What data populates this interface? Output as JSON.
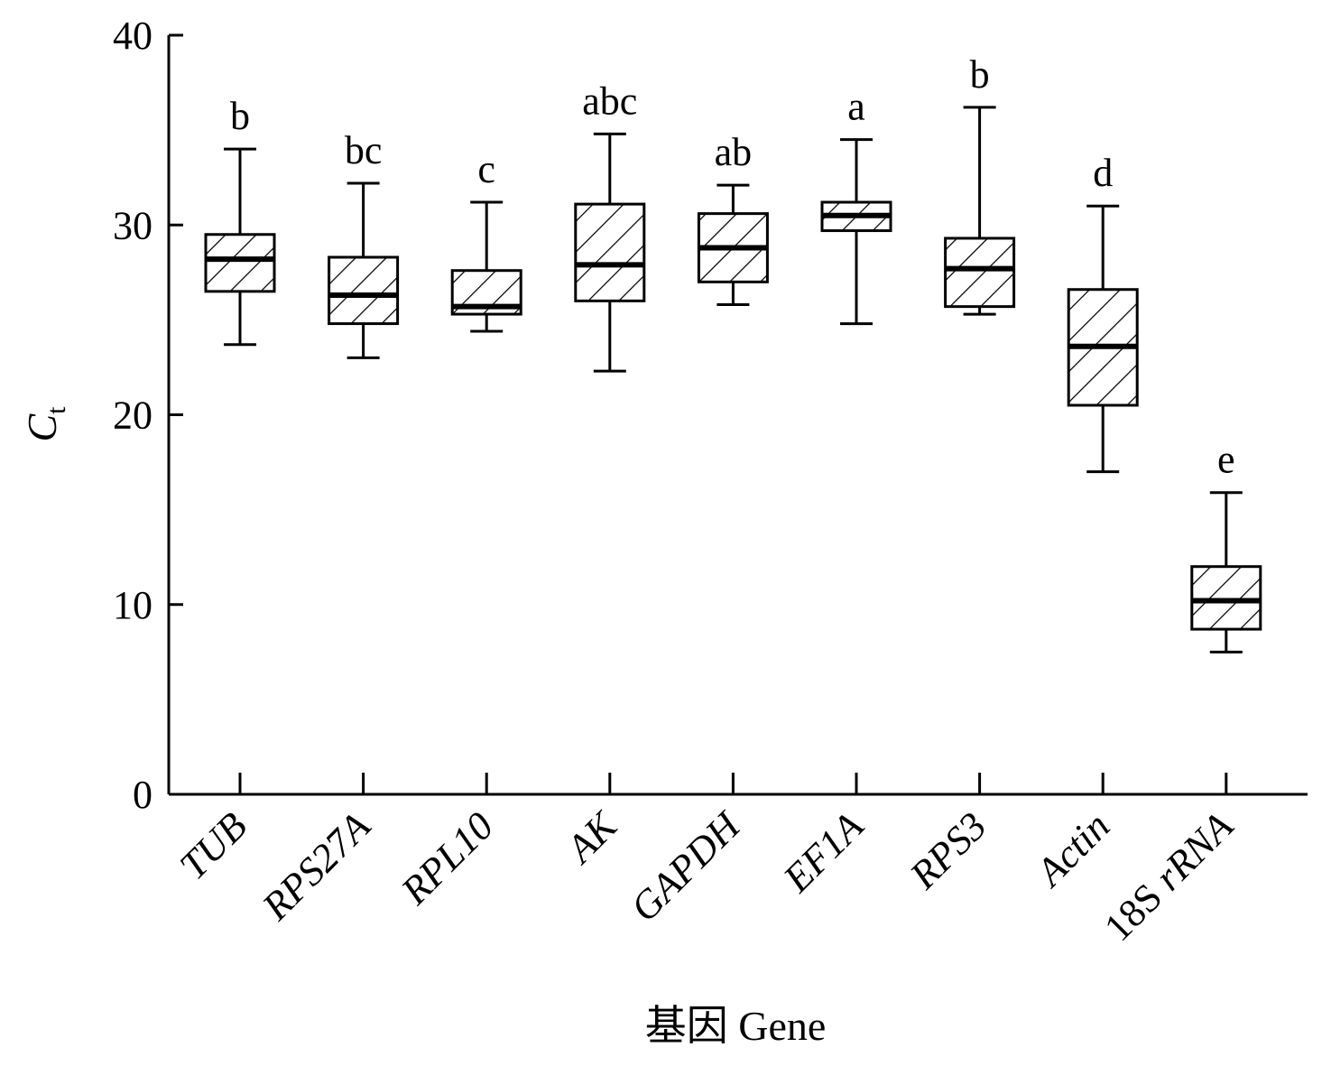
{
  "chart_data": {
    "type": "box",
    "xlabel": "基因  Gene",
    "ylabel": "C",
    "ylabel_subscript": "t",
    "ylim": [
      0,
      40
    ],
    "yticks": [
      0,
      10,
      20,
      30,
      40
    ],
    "grid": false,
    "categories": [
      "TUB",
      "RPS27A",
      "RPL10",
      "AK",
      "GAPDH",
      "EF1A",
      "RPS3",
      "Actin",
      "18S rRNA"
    ],
    "category_italic_parts": [
      [
        {
          "t": "TUB",
          "i": true
        }
      ],
      [
        {
          "t": "RPS27A",
          "i": true
        }
      ],
      [
        {
          "t": "RPL10",
          "i": true
        }
      ],
      [
        {
          "t": "AK",
          "i": true
        }
      ],
      [
        {
          "t": "GAPDH",
          "i": true
        }
      ],
      [
        {
          "t": "EF1A",
          "i": true
        }
      ],
      [
        {
          "t": "RPS3",
          "i": true
        }
      ],
      [
        {
          "t": "Actin",
          "i": true
        }
      ],
      [
        {
          "t": "18S ",
          "i": false
        },
        {
          "t": "rRNA",
          "i": true
        }
      ]
    ],
    "series": [
      {
        "category": "TUB",
        "min": 23.7,
        "q1": 26.5,
        "median": 28.2,
        "q3": 29.5,
        "max": 34.0,
        "significance": "b"
      },
      {
        "category": "RPS27A",
        "min": 23.0,
        "q1": 24.8,
        "median": 26.3,
        "q3": 28.3,
        "max": 32.2,
        "significance": "bc"
      },
      {
        "category": "RPL10",
        "min": 24.4,
        "q1": 25.3,
        "median": 25.7,
        "q3": 27.6,
        "max": 31.2,
        "significance": "c"
      },
      {
        "category": "AK",
        "min": 22.3,
        "q1": 26.0,
        "median": 27.9,
        "q3": 31.1,
        "max": 34.8,
        "significance": "abc"
      },
      {
        "category": "GAPDH",
        "min": 25.8,
        "q1": 27.0,
        "median": 28.8,
        "q3": 30.6,
        "max": 32.1,
        "significance": "ab"
      },
      {
        "category": "EF1A",
        "min": 24.8,
        "q1": 29.7,
        "median": 30.5,
        "q3": 31.2,
        "max": 34.5,
        "significance": "a"
      },
      {
        "category": "RPS3",
        "min": 25.3,
        "q1": 25.7,
        "median": 27.7,
        "q3": 29.3,
        "max": 36.2,
        "significance": "b"
      },
      {
        "category": "Actin",
        "min": 17.0,
        "q1": 20.5,
        "median": 23.6,
        "q3": 26.6,
        "max": 31.0,
        "significance": "d"
      },
      {
        "category": "18S rRNA",
        "min": 7.5,
        "q1": 8.7,
        "median": 10.2,
        "q3": 12.0,
        "max": 15.9,
        "significance": "e"
      }
    ]
  }
}
